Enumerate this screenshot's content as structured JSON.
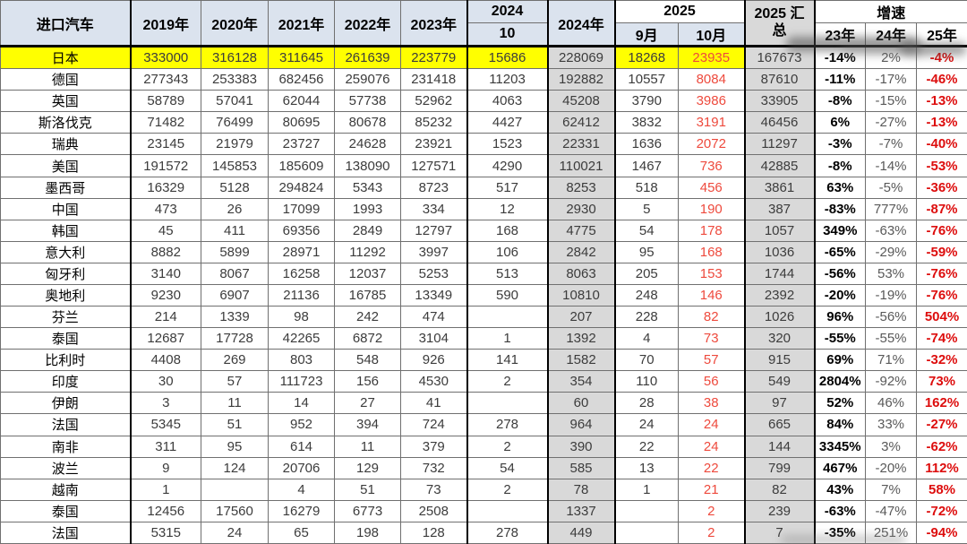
{
  "colors": {
    "highlight_row_yellow": "#ffff00",
    "summary_column_gray": "#d9d9d9",
    "header_blue": "#dbe3ee",
    "october_value_red": "#ee4a3d",
    "growth25_red": "#dd0d0d"
  },
  "chart_data": {
    "type": "table",
    "title": "进口汽车",
    "header": {
      "country": "进口汽车",
      "years": [
        "2019年",
        "2020年",
        "2021年",
        "2022年",
        "2023年"
      ],
      "oct2024_line1": "2024",
      "oct2024_line2": "10",
      "year2024": "2024年",
      "y2025_group": "2025",
      "y2025_months": [
        "9月",
        "10月"
      ],
      "total2025": "2025 汇总",
      "growth_group": "增速",
      "growth_years": [
        "23年",
        "24年",
        "25年"
      ]
    },
    "rows": [
      {
        "country": "日本",
        "highlight": true,
        "cells": [
          "333000",
          "316128",
          "311645",
          "261639",
          "223779",
          "15686",
          "228069",
          "18268",
          "23935",
          "167673",
          "-14%",
          "2%",
          "-4%"
        ]
      },
      {
        "country": "德国",
        "highlight": false,
        "cells": [
          "277343",
          "253383",
          "682456",
          "259076",
          "231418",
          "11203",
          "192882",
          "10557",
          "8084",
          "87610",
          "-11%",
          "-17%",
          "-46%"
        ]
      },
      {
        "country": "英国",
        "highlight": false,
        "cells": [
          "58789",
          "57041",
          "62044",
          "57738",
          "52962",
          "4063",
          "45208",
          "3790",
          "3986",
          "33905",
          "-8%",
          "-15%",
          "-13%"
        ]
      },
      {
        "country": "斯洛伐克",
        "highlight": false,
        "cells": [
          "71482",
          "76499",
          "80695",
          "80678",
          "85232",
          "4427",
          "62412",
          "3832",
          "3191",
          "46456",
          "6%",
          "-27%",
          "-13%"
        ]
      },
      {
        "country": "瑞典",
        "highlight": false,
        "cells": [
          "23145",
          "21979",
          "23727",
          "24628",
          "23921",
          "1523",
          "22331",
          "1636",
          "2072",
          "11297",
          "-3%",
          "-7%",
          "-40%"
        ]
      },
      {
        "country": "美国",
        "highlight": false,
        "cells": [
          "191572",
          "145853",
          "185609",
          "138090",
          "127571",
          "4290",
          "110021",
          "1467",
          "736",
          "42885",
          "-8%",
          "-14%",
          "-53%"
        ]
      },
      {
        "country": "墨西哥",
        "highlight": false,
        "cells": [
          "16329",
          "5128",
          "294824",
          "5343",
          "8723",
          "517",
          "8253",
          "518",
          "456",
          "3861",
          "63%",
          "-5%",
          "-36%"
        ]
      },
      {
        "country": "中国",
        "highlight": false,
        "cells": [
          "473",
          "26",
          "17099",
          "1993",
          "334",
          "12",
          "2930",
          "5",
          "190",
          "387",
          "-83%",
          "777%",
          "-87%"
        ]
      },
      {
        "country": "韩国",
        "highlight": false,
        "cells": [
          "45",
          "411",
          "69356",
          "2849",
          "12797",
          "168",
          "4775",
          "54",
          "178",
          "1057",
          "349%",
          "-63%",
          "-76%"
        ]
      },
      {
        "country": "意大利",
        "highlight": false,
        "cells": [
          "8882",
          "5899",
          "28971",
          "11292",
          "3997",
          "106",
          "2842",
          "95",
          "168",
          "1036",
          "-65%",
          "-29%",
          "-59%"
        ]
      },
      {
        "country": "匈牙利",
        "highlight": false,
        "cells": [
          "3140",
          "8067",
          "16258",
          "12037",
          "5253",
          "513",
          "8063",
          "205",
          "153",
          "1744",
          "-56%",
          "53%",
          "-76%"
        ]
      },
      {
        "country": "奥地利",
        "highlight": false,
        "cells": [
          "9230",
          "6907",
          "21136",
          "16785",
          "13349",
          "590",
          "10810",
          "248",
          "146",
          "2392",
          "-20%",
          "-19%",
          "-76%"
        ]
      },
      {
        "country": "芬兰",
        "highlight": false,
        "cells": [
          "214",
          "1339",
          "98",
          "242",
          "474",
          "",
          "207",
          "228",
          "82",
          "1026",
          "96%",
          "-56%",
          "504%"
        ]
      },
      {
        "country": "泰国",
        "highlight": false,
        "cells": [
          "12687",
          "17728",
          "42265",
          "6872",
          "3104",
          "1",
          "1392",
          "4",
          "73",
          "320",
          "-55%",
          "-55%",
          "-74%"
        ]
      },
      {
        "country": "比利时",
        "highlight": false,
        "cells": [
          "4408",
          "269",
          "803",
          "548",
          "926",
          "141",
          "1582",
          "70",
          "57",
          "915",
          "69%",
          "71%",
          "-32%"
        ]
      },
      {
        "country": "印度",
        "highlight": false,
        "cells": [
          "30",
          "57",
          "111723",
          "156",
          "4530",
          "2",
          "354",
          "110",
          "56",
          "549",
          "2804%",
          "-92%",
          "73%"
        ]
      },
      {
        "country": "伊朗",
        "highlight": false,
        "cells": [
          "3",
          "11",
          "14",
          "27",
          "41",
          "",
          "60",
          "28",
          "38",
          "97",
          "52%",
          "46%",
          "162%"
        ]
      },
      {
        "country": "法国",
        "highlight": false,
        "cells": [
          "5345",
          "51",
          "952",
          "394",
          "724",
          "278",
          "964",
          "24",
          "24",
          "665",
          "84%",
          "33%",
          "-27%"
        ]
      },
      {
        "country": "南非",
        "highlight": false,
        "cells": [
          "311",
          "95",
          "614",
          "11",
          "379",
          "2",
          "390",
          "22",
          "24",
          "144",
          "3345%",
          "3%",
          "-62%"
        ]
      },
      {
        "country": "波兰",
        "highlight": false,
        "cells": [
          "9",
          "124",
          "20706",
          "129",
          "732",
          "54",
          "585",
          "13",
          "22",
          "799",
          "467%",
          "-20%",
          "112%"
        ]
      },
      {
        "country": "越南",
        "highlight": false,
        "cells": [
          "1",
          "",
          "4",
          "51",
          "73",
          "2",
          "78",
          "1",
          "21",
          "82",
          "43%",
          "7%",
          "58%"
        ]
      },
      {
        "country": "泰国",
        "highlight": false,
        "cells": [
          "12456",
          "17560",
          "16279",
          "6773",
          "2508",
          "",
          "1337",
          "",
          "2",
          "239",
          "-63%",
          "-47%",
          "-72%"
        ]
      },
      {
        "country": "法国",
        "highlight": false,
        "cells": [
          "5315",
          "24",
          "65",
          "198",
          "128",
          "278",
          "449",
          "",
          "2",
          "7",
          "-35%",
          "251%",
          "-94%"
        ]
      }
    ]
  }
}
